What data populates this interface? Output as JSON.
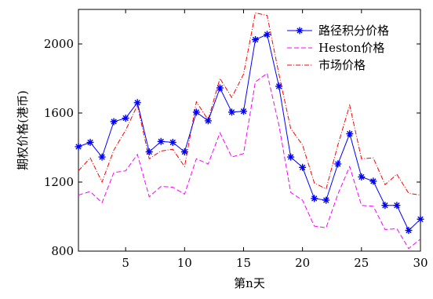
{
  "chart_data": {
    "type": "line",
    "title": "",
    "xlabel": "第n天",
    "ylabel": "期权价格(港币)",
    "xlim": [
      1,
      30
    ],
    "ylim": [
      800,
      2200
    ],
    "xticks": [
      5,
      10,
      15,
      20,
      25,
      30
    ],
    "yticks": [
      800,
      1200,
      1600,
      2000
    ],
    "grid": false,
    "legend_position": "top-right",
    "x": [
      1,
      2,
      3,
      4,
      5,
      6,
      7,
      8,
      9,
      10,
      11,
      12,
      13,
      14,
      15,
      16,
      17,
      18,
      19,
      20,
      21,
      22,
      23,
      24,
      25,
      26,
      27,
      28,
      29,
      30
    ],
    "series": [
      {
        "name": "路径积分价格",
        "color": "#0000ff",
        "line_style": "solid",
        "marker": "star",
        "values": [
          1405,
          1430,
          1345,
          1550,
          1570,
          1660,
          1375,
          1435,
          1430,
          1375,
          1605,
          1555,
          1745,
          1605,
          1610,
          2025,
          2055,
          1755,
          1345,
          1285,
          1105,
          1095,
          1305,
          1480,
          1230,
          1205,
          1065,
          1065,
          920,
          985
        ]
      },
      {
        "name": "Heston价格",
        "color": "#ff00ff",
        "line_style": "dashed",
        "marker": "none",
        "values": [
          1125,
          1145,
          1080,
          1255,
          1265,
          1360,
          1115,
          1175,
          1170,
          1130,
          1335,
          1305,
          1485,
          1345,
          1365,
          1780,
          1830,
          1530,
          1140,
          1095,
          945,
          935,
          1130,
          1290,
          1065,
          1060,
          925,
          930,
          815,
          870
        ]
      },
      {
        "name": "市场价格",
        "color": "#ff0000",
        "line_style": "dashdot",
        "marker": "none",
        "values": [
          1265,
          1340,
          1200,
          1385,
          1500,
          1645,
          1335,
          1380,
          1390,
          1290,
          1665,
          1560,
          1800,
          1690,
          1825,
          2180,
          2165,
          1825,
          1510,
          1415,
          1195,
          1160,
          1415,
          1645,
          1335,
          1340,
          1185,
          1245,
          1135,
          1125
        ]
      }
    ]
  }
}
